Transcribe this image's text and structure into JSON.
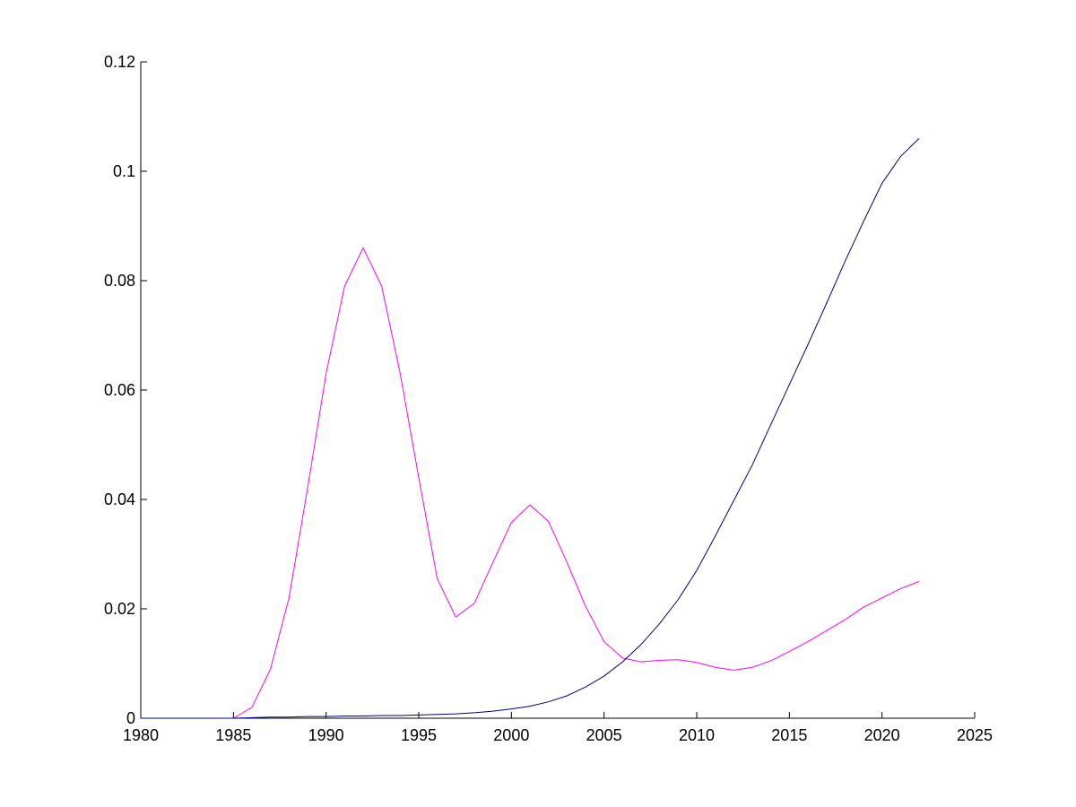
{
  "chart_data": {
    "type": "line",
    "title": "",
    "xlabel": "",
    "ylabel": "",
    "xlim": [
      1980,
      2025
    ],
    "ylim": [
      0,
      0.12
    ],
    "xticks": [
      "1980",
      "1985",
      "1990",
      "1995",
      "2000",
      "2005",
      "2010",
      "2015",
      "2020",
      "2025"
    ],
    "yticks": [
      "0",
      "0.02",
      "0.04",
      "0.06",
      "0.08",
      "0.1",
      "0.12"
    ],
    "grid": false,
    "legend": "none",
    "x": [
      1980,
      1981,
      1982,
      1983,
      1984,
      1985,
      1986,
      1987,
      1988,
      1989,
      1990,
      1991,
      1992,
      1993,
      1994,
      1995,
      1996,
      1997,
      1998,
      1999,
      2000,
      2001,
      2002,
      2003,
      2004,
      2005,
      2006,
      2007,
      2008,
      2009,
      2010,
      2011,
      2012,
      2013,
      2014,
      2015,
      2016,
      2017,
      2018,
      2019,
      2020,
      2021,
      2022
    ],
    "series": [
      {
        "color": "#ff00ff",
        "values": [
          0,
          0,
          0,
          0,
          0,
          0,
          0.002,
          0.009,
          0.022,
          0.042,
          0.063,
          0.079,
          0.086,
          0.079,
          0.063,
          0.044,
          0.0255,
          0.0185,
          0.021,
          0.0285,
          0.0358,
          0.039,
          0.036,
          0.0285,
          0.0205,
          0.014,
          0.011,
          0.0103,
          0.0106,
          0.0107,
          0.0102,
          0.0093,
          0.0088,
          0.0093,
          0.0105,
          0.0122,
          0.014,
          0.016,
          0.018,
          0.0203,
          0.022,
          0.0237,
          0.025
        ]
      },
      {
        "color": "#000080",
        "values": [
          0,
          0,
          0,
          0,
          0,
          0,
          0.0001,
          0.0002,
          0.0002,
          0.0003,
          0.0003,
          0.0004,
          0.0004,
          0.0005,
          0.0005,
          0.0006,
          0.0007,
          0.0008,
          0.001,
          0.0013,
          0.0017,
          0.0022,
          0.003,
          0.0041,
          0.0057,
          0.0077,
          0.0103,
          0.0135,
          0.0173,
          0.0217,
          0.027,
          0.0333,
          0.0398,
          0.0463,
          0.0537,
          0.061,
          0.0683,
          0.0758,
          0.0835,
          0.0908,
          0.0978,
          0.1027,
          0.106
        ]
      }
    ]
  }
}
